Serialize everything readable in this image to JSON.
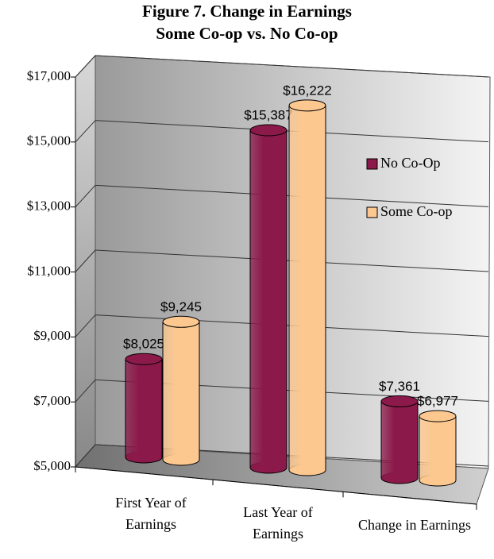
{
  "chart_data": {
    "type": "bar3d",
    "title": "Figure 7. Change in Earnings",
    "subtitle": "Some Co-op vs.  No Co-op",
    "categories": [
      "First Year of Earnings",
      "Last Year of Earnings",
      "Change in Earnings"
    ],
    "series": [
      {
        "name": "No Co-Op",
        "color": "#8b1a4a",
        "values": [
          8025,
          15387,
          7361
        ],
        "value_labels": [
          "$8,025",
          "$15,387",
          "$7,361"
        ]
      },
      {
        "name": "Some Co-op",
        "color": "#fcc890",
        "values": [
          9245,
          16222,
          6977
        ],
        "value_labels": [
          "$9,245",
          "$16,222",
          "$6,977"
        ]
      }
    ],
    "ylim": [
      5000,
      17000
    ],
    "yticks": [
      {
        "value": 5000,
        "label": "$5,000"
      },
      {
        "value": 7000,
        "label": "$7,000"
      },
      {
        "value": 9000,
        "label": "$9,000"
      },
      {
        "value": 11000,
        "label": "$11,000"
      },
      {
        "value": 13000,
        "label": "$13,000"
      },
      {
        "value": 15000,
        "label": "$15,000"
      },
      {
        "value": 17000,
        "label": "$17,000"
      }
    ],
    "grid": true,
    "legend": "right"
  }
}
